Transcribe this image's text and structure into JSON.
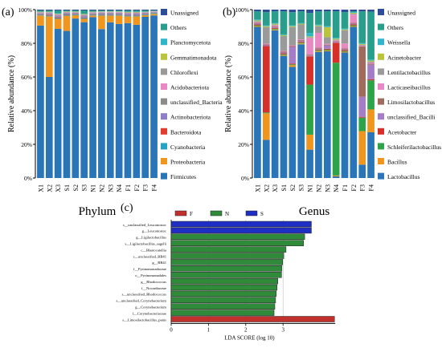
{
  "colors": {
    "Firmicutes": "#2A75B8",
    "Proteobacteria": "#F0961F",
    "Cyanobacteria": "#23A4C5",
    "Bacteroidota": "#E23D2E",
    "Actinobacteriota": "#8F7FC6",
    "unclassified_Bacteria": "#8C8C8C",
    "Acidobacteriota": "#E889C4",
    "Chloroflexi": "#9A9A9A",
    "Gemmatimonadota": "#B9C33B",
    "Planctomycetota": "#2FB7C9",
    "Others": "#2A9E8C",
    "Unassigned": "#2E4C9A",
    "Lactobacillus": "#2A75B8",
    "Bacillus": "#F0961F",
    "Schleiferilactobacillus": "#2EA44A",
    "Acetobacter": "#D6302A",
    "unclassified_Bacilli": "#A57CC6",
    "Limosilactobacillus": "#A06A5C",
    "Lacticaseibacillus": "#E889C4",
    "Lentilactobacillus": "#9A9A9A",
    "Acinetobacter": "#B9C33B",
    "Weissella": "#2FB7C9",
    "F": "#C0312C",
    "N": "#2F8A3A",
    "S": "#1F2FC4"
  },
  "chart_data": [
    {
      "type": "bar",
      "stacked": true,
      "panel_label": "(a)",
      "xlabel": "Phylum",
      "ylabel": "Relative abundance (%)",
      "ylim": [
        0,
        100
      ],
      "yticks": [
        "0%",
        "20%",
        "40%",
        "60%",
        "80%",
        "100%"
      ],
      "categories": [
        "X1",
        "X2",
        "X3",
        "S1",
        "S2",
        "S3",
        "N1",
        "N2",
        "N3",
        "N4",
        "F1",
        "F2",
        "F3",
        "F4"
      ],
      "legend_position": "right",
      "series": [
        {
          "name": "Firmicutes",
          "values": [
            91,
            60,
            89,
            87,
            95,
            93,
            96,
            88,
            92,
            91,
            92,
            91,
            96,
            97
          ]
        },
        {
          "name": "Proteobacteria",
          "values": [
            6,
            36,
            6,
            9,
            2,
            2,
            1,
            8,
            4,
            5,
            4,
            5,
            1,
            1
          ]
        },
        {
          "name": "Cyanobacteria",
          "values": [
            0.5,
            0.5,
            0.5,
            0.5,
            0.5,
            0.5,
            0.5,
            0.5,
            0.5,
            0.5,
            0.5,
            0.5,
            0.5,
            0.5
          ]
        },
        {
          "name": "Bacteroidota",
          "values": [
            0.3,
            0.5,
            0.4,
            0.3,
            0.3,
            0.3,
            0.3,
            0.3,
            0.3,
            0.3,
            0.3,
            0.3,
            0.3,
            0.2
          ]
        },
        {
          "name": "Actinobacteriota",
          "values": [
            0.4,
            0.5,
            0.6,
            0.5,
            0.4,
            0.6,
            0.4,
            0.5,
            0.5,
            0.5,
            0.6,
            0.6,
            0.4,
            0.3
          ]
        },
        {
          "name": "unclassified_Bacteria",
          "values": [
            0.3,
            0.4,
            0.5,
            0.4,
            0.3,
            0.5,
            0.3,
            0.4,
            0.4,
            0.4,
            0.4,
            0.4,
            0.3,
            0.2
          ]
        },
        {
          "name": "Acidobacteriota",
          "values": [
            0.3,
            0.3,
            0.4,
            0.3,
            0.2,
            0.4,
            0.3,
            0.3,
            0.3,
            0.3,
            0.3,
            0.3,
            0.2,
            0.2
          ]
        },
        {
          "name": "Chloroflexi",
          "values": [
            0.2,
            0.3,
            0.3,
            0.2,
            0.2,
            0.3,
            0.2,
            0.2,
            0.2,
            0.2,
            0.3,
            0.3,
            0.2,
            0.1
          ]
        },
        {
          "name": "Gemmatimonadota",
          "values": [
            0.2,
            0.2,
            0.3,
            0.2,
            0.2,
            0.3,
            0.2,
            0.2,
            0.2,
            0.2,
            0.2,
            0.2,
            0.1,
            0.1
          ]
        },
        {
          "name": "Planctomycetota",
          "values": [
            0.1,
            0.1,
            0.3,
            0.1,
            0.1,
            0.2,
            0.1,
            0.1,
            0.1,
            0.1,
            0.1,
            0.1,
            0.1,
            0.1
          ]
        },
        {
          "name": "Others",
          "values": [
            0.7,
            0.7,
            1.7,
            0.6,
            0.6,
            1.9,
            0.7,
            0.5,
            0.5,
            0.5,
            0.8,
            0.8,
            0.7,
            0.3
          ]
        },
        {
          "name": "Unassigned",
          "values": [
            0.5,
            0.5,
            0.5,
            0.5,
            0.5,
            0.5,
            0.5,
            0.5,
            0.5,
            0.5,
            0.5,
            0.5,
            0.5,
            0.5
          ]
        }
      ],
      "legend_order": [
        "Unassigned",
        "Others",
        "Planctomycetota",
        "Gemmatimonadota",
        "Chloroflexi",
        "Acidobacteriota",
        "unclassified_Bacteria",
        "Actinobacteriota",
        "Bacteroidota",
        "Cyanobacteria",
        "Proteobacteria",
        "Firmicutes"
      ]
    },
    {
      "type": "bar",
      "stacked": true,
      "panel_label": "(b)",
      "xlabel": "Genus",
      "ylabel": "Relative abundance (%)",
      "ylim": [
        0,
        100
      ],
      "yticks": [
        "0%",
        "20%",
        "40%",
        "60%",
        "80%",
        "100%"
      ],
      "categories": [
        "X1",
        "X2",
        "X3",
        "S1",
        "S2",
        "S3",
        "N1",
        "N2",
        "N3",
        "N4",
        "F1",
        "F2",
        "F3",
        "F4"
      ],
      "legend_position": "right",
      "series": [
        {
          "name": "Lactobacillus",
          "values": [
            92,
            23,
            89,
            74,
            67,
            81,
            17,
            76,
            76,
            1,
            76,
            92,
            8,
            22
          ]
        },
        {
          "name": "Bacillus",
          "values": [
            0.5,
            16,
            0.5,
            0.5,
            1,
            0.5,
            9,
            0.5,
            0.5,
            0.5,
            0.5,
            0.5,
            20,
            11
          ]
        },
        {
          "name": "Schleiferilactobacillus",
          "values": [
            0.5,
            0.5,
            0.5,
            0.5,
            0.5,
            0.5,
            30,
            0.5,
            0.5,
            68,
            0.5,
            0.5,
            8,
            14
          ]
        },
        {
          "name": "Acetobacter",
          "values": [
            0.5,
            40,
            0.5,
            0.5,
            0.5,
            0.5,
            17,
            0.5,
            0.5,
            12,
            0.5,
            0.5,
            0.5,
            0.5
          ]
        },
        {
          "name": "unclassified_Bacilli",
          "values": [
            0.5,
            0.5,
            0.5,
            0.5,
            10,
            0.5,
            0.5,
            0.5,
            2,
            0.5,
            0.5,
            0.5,
            12,
            7
          ]
        },
        {
          "name": "Limosilactobacillus",
          "values": [
            0.5,
            0.5,
            0.5,
            0.5,
            0.5,
            0.5,
            0.5,
            0.5,
            0.5,
            0.5,
            0.5,
            0.5,
            30,
            0.5
          ]
        },
        {
          "name": "Lacticaseibacillus",
          "values": [
            0.5,
            0.5,
            0.5,
            0.5,
            0.5,
            0.5,
            10,
            9,
            0.5,
            0.5,
            3,
            5,
            0.5,
            0.5
          ]
        },
        {
          "name": "Lentilactobacillus",
          "values": [
            0.5,
            10,
            0.5,
            9,
            11,
            9,
            0.5,
            4,
            4,
            0.5,
            8,
            0.5,
            0.5,
            0.5
          ]
        },
        {
          "name": "Acinetobacter",
          "values": [
            0.5,
            0.5,
            0.5,
            0.5,
            0.5,
            0.5,
            0.5,
            0.5,
            6,
            0.5,
            0.5,
            0.5,
            0.5,
            0.5
          ]
        },
        {
          "name": "Weissella",
          "values": [
            0.5,
            0.5,
            0.5,
            0.5,
            0.5,
            0.5,
            2,
            0.5,
            0.5,
            0.5,
            0.5,
            0.5,
            0.5,
            0.5
          ]
        },
        {
          "name": "Others",
          "values": [
            5,
            8,
            7,
            14,
            8,
            7,
            12,
            8,
            9,
            16,
            10,
            0.5,
            19,
            23
          ]
        },
        {
          "name": "Unassigned",
          "values": [
            1,
            1.5,
            1,
            1,
            1.5,
            1,
            2,
            1,
            1,
            1,
            1.5,
            1,
            1,
            1
          ]
        }
      ],
      "legend_order": [
        "Unassigned",
        "Others",
        "Weissella",
        "Acinetobacter",
        "Lentilactobacillus",
        "Lacticaseibacillus",
        "Limosilactobacillus",
        "unclassified_Bacilli",
        "Acetobacter",
        "Schleiferilactobacillus",
        "Bacillus",
        "Lactobacillus"
      ]
    },
    {
      "type": "bar",
      "orientation": "horizontal",
      "panel_label": "(c)",
      "xlabel": "LDA SCORE (log 10)",
      "xlim": [
        0,
        4.4
      ],
      "xticks": [
        0,
        1,
        2,
        3
      ],
      "legend": [
        "F",
        "N",
        "S"
      ],
      "legend_position": "top",
      "categories": [
        "s__unclassified_Leuconostoc",
        "g__Leuconostoc",
        "g__Ligilactobacillus",
        "s__Ligilactobacillus_sagelli",
        "c__Blastocatellia",
        "s__unclassified_RB41",
        "g__RB41",
        "f__Pyrinomonadaceae",
        "o__Pyrinomonadales",
        "g__Rhodococcus",
        "f__Nocardiaceae",
        "s__unclassified_Rhodococcus",
        "s__unclassified_Corynebacterium",
        "g__Corynebacterium",
        "f__Corynebacteriaceae",
        "s__Limosilactobacillus_panis"
      ],
      "values": [
        3.76,
        3.76,
        3.58,
        3.55,
        3.08,
        3.02,
        2.99,
        2.97,
        2.96,
        2.86,
        2.84,
        2.82,
        2.8,
        2.78,
        2.76,
        4.38
      ],
      "groups": [
        "S",
        "S",
        "N",
        "N",
        "N",
        "N",
        "N",
        "N",
        "N",
        "N",
        "N",
        "N",
        "N",
        "N",
        "N",
        "F"
      ]
    }
  ]
}
